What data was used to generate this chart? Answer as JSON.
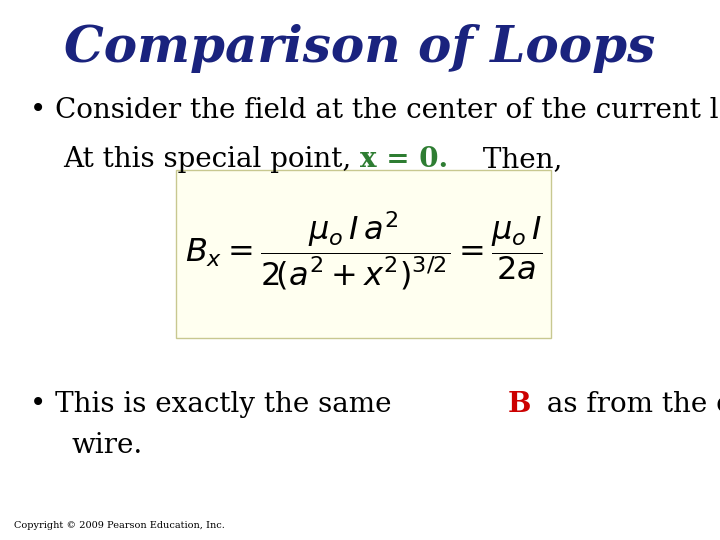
{
  "title": "Comparison of Loops",
  "title_color": "#1a237e",
  "title_fontsize": 36,
  "title_fontstyle": "italic",
  "title_fontweight": "bold",
  "bg_color": "#ffffff",
  "bullet1_text1": "• Consider the field at the center of the current loop.",
  "bullet1_prefix": "At this special point, ",
  "bullet1_colored": "x = 0.",
  "bullet1_colored_color": "#2e7d32",
  "bullet1_suffix": " Then,",
  "formula_box_color": "#fffff0",
  "formula_box_edgecolor": "#c8c890",
  "bullet2_prefix": "• This is exactly the same ",
  "bullet2_B": "B",
  "bullet2_B_color": "#cc0000",
  "bullet2_suffix": " as from the curved",
  "bullet2_line2": "wire.",
  "copyright": "Copyright © 2009 Pearson Education, Inc.",
  "text_fontsize": 20,
  "formula_fontsize": 23
}
